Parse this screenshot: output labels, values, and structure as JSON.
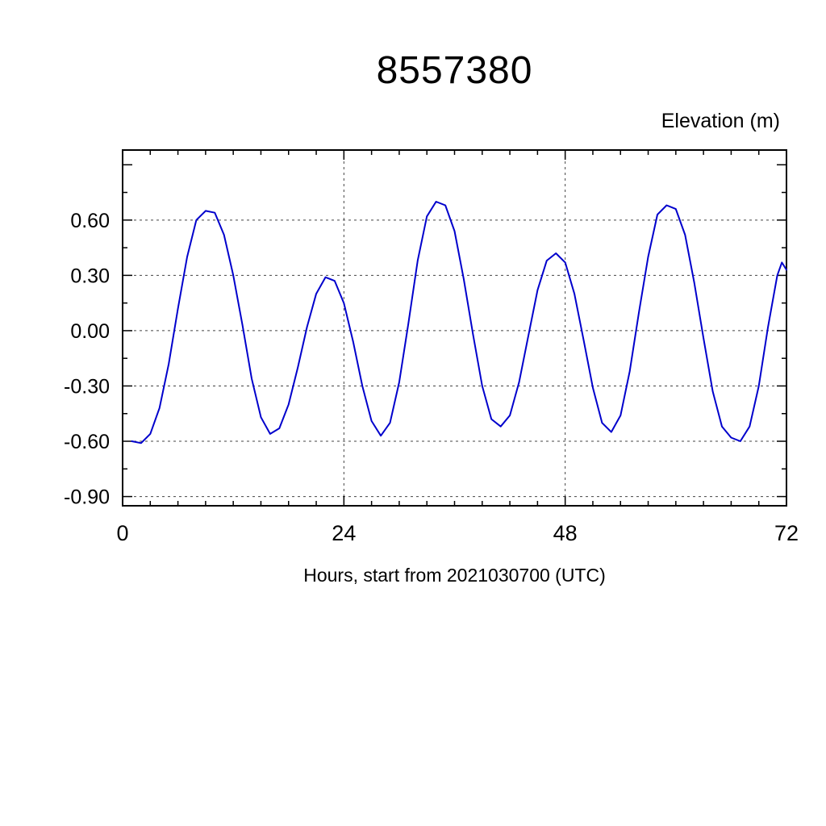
{
  "chart_data": {
    "type": "line",
    "title": "8557380",
    "units_label": "Elevation (m)",
    "xlabel": "Hours, start from 2021030700 (UTC)",
    "line_color": "#0000cc",
    "grid": true,
    "legend": "none",
    "xlim": [
      0,
      72
    ],
    "ylim": [
      -0.95,
      0.98
    ],
    "xticks": [
      0,
      24,
      48,
      72
    ],
    "xtick_labels": [
      "0",
      "24",
      "48",
      "72"
    ],
    "yticks": [
      0.6,
      0.3,
      0.0,
      -0.3,
      -0.6,
      -0.9
    ],
    "ytick_labels": [
      "0.60",
      "0.30",
      "0.00",
      "-0.30",
      "-0.60",
      "-0.90"
    ],
    "x_minor_step": 3,
    "y_minor_step": 0.15,
    "grid_x": [
      24,
      48
    ],
    "x": [
      1,
      2,
      3,
      4,
      5,
      6,
      7,
      8,
      9,
      10,
      11,
      12,
      13,
      14,
      15,
      16,
      17,
      18,
      19,
      20,
      21,
      22,
      23,
      24,
      25,
      26,
      27,
      28,
      29,
      30,
      31,
      32,
      33,
      34,
      35,
      36,
      37,
      38,
      39,
      40,
      41,
      42,
      43,
      44,
      45,
      46,
      47,
      48,
      49,
      50,
      51,
      52,
      53,
      54,
      55,
      56,
      57,
      58,
      59,
      60,
      61,
      62,
      63,
      64,
      65,
      66,
      67,
      68,
      69,
      70,
      71,
      71.5,
      72
    ],
    "y": [
      -0.6,
      -0.61,
      -0.56,
      -0.42,
      -0.18,
      0.12,
      0.4,
      0.6,
      0.65,
      0.64,
      0.52,
      0.3,
      0.03,
      -0.26,
      -0.47,
      -0.56,
      -0.53,
      -0.4,
      -0.2,
      0.02,
      0.2,
      0.29,
      0.27,
      0.15,
      -0.06,
      -0.3,
      -0.49,
      -0.57,
      -0.5,
      -0.28,
      0.04,
      0.38,
      0.62,
      0.7,
      0.68,
      0.54,
      0.28,
      -0.02,
      -0.3,
      -0.48,
      -0.52,
      -0.46,
      -0.28,
      -0.03,
      0.22,
      0.38,
      0.42,
      0.37,
      0.2,
      -0.05,
      -0.31,
      -0.5,
      -0.55,
      -0.46,
      -0.22,
      0.1,
      0.4,
      0.63,
      0.68,
      0.66,
      0.52,
      0.26,
      -0.04,
      -0.33,
      -0.52,
      -0.58,
      -0.6,
      -0.52,
      -0.3,
      0.02,
      0.3,
      0.37,
      0.33
    ]
  }
}
